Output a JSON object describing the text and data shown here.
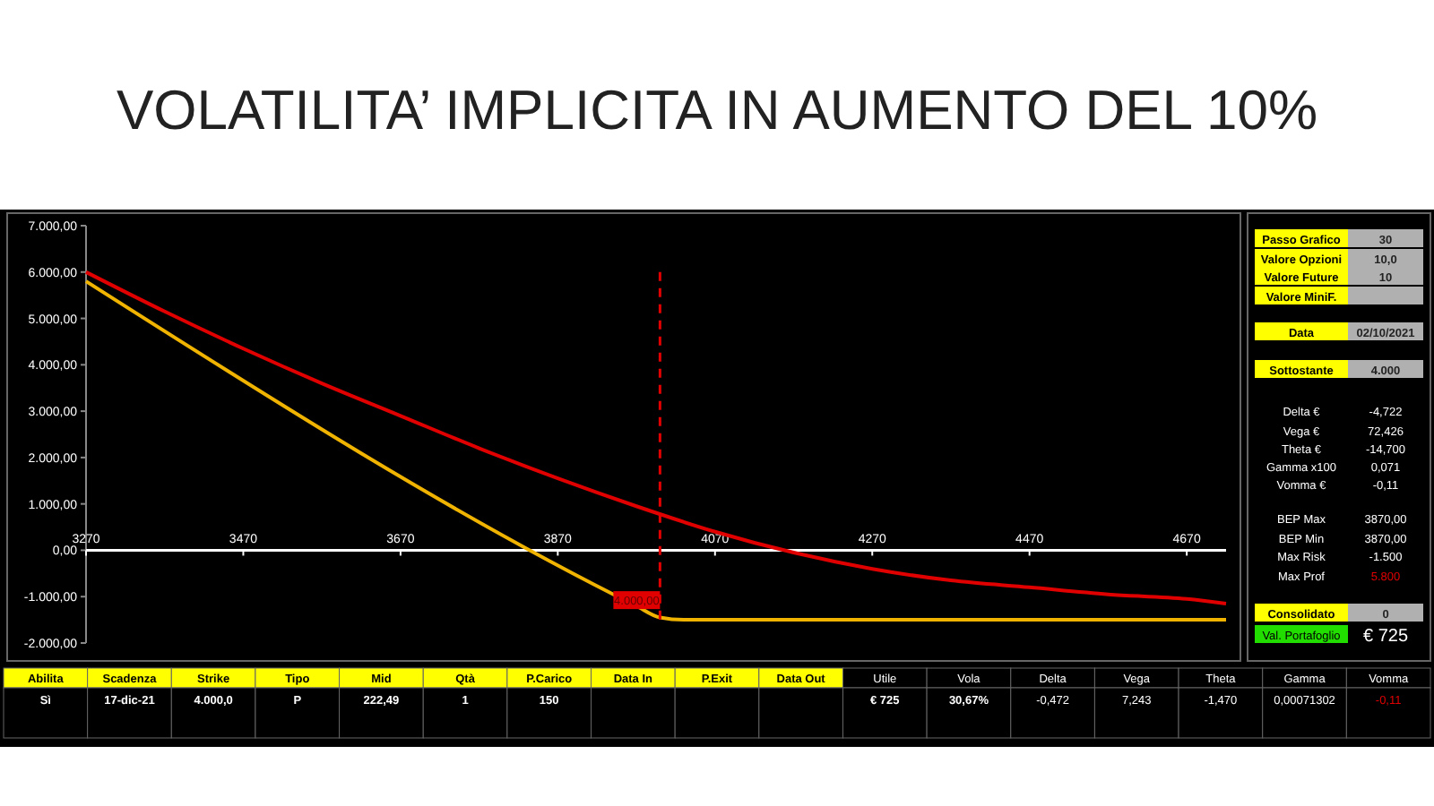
{
  "chart_data": [
    {
      "type": "line",
      "title": "VOLATILITA’ IMPLICITA IN AUMENTO DEL 10%",
      "grid": false,
      "marker": "none",
      "line_style": "solid",
      "xlim": [
        3270,
        4720
      ],
      "xticks": [
        3270,
        3470,
        3670,
        3870,
        4070,
        4270,
        4470,
        4670
      ],
      "ylim": [
        -2000,
        7000
      ],
      "yticks": [
        {
          "value": -2000,
          "label": "-2.000,00"
        },
        {
          "value": -1000,
          "label": "-1.000,00"
        },
        {
          "value": 0,
          "label": "0,00"
        },
        {
          "value": 1000,
          "label": "1.000,00"
        },
        {
          "value": 2000,
          "label": "2.000,00"
        },
        {
          "value": 3000,
          "label": "3.000,00"
        },
        {
          "value": 4000,
          "label": "4.000,00"
        },
        {
          "value": 5000,
          "label": "5.000,00"
        },
        {
          "value": 6000,
          "label": "6.000,00"
        },
        {
          "value": 7000,
          "label": "7.000,00"
        }
      ],
      "series": [
        {
          "color": "#e00000",
          "x": [
            3270,
            3370,
            3470,
            3570,
            3670,
            3770,
            3870,
            3970,
            4070,
            4170,
            4270,
            4370,
            4470,
            4570,
            4670,
            4720
          ],
          "values": [
            6000,
            5150,
            4350,
            3600,
            2900,
            2200,
            1550,
            950,
            400,
            -50,
            -400,
            -650,
            -800,
            -950,
            -1050,
            -1150
          ]
        },
        {
          "color": "#f0b400",
          "x": [
            3270,
            3970,
            4000,
            4030,
            4720
          ],
          "values": [
            5800,
            -1200,
            -1450,
            -1500,
            -1500
          ]
        }
      ],
      "ref_lines": [
        {
          "axis": "x",
          "value": 4000,
          "label": "4.000,00",
          "color": "#e00000",
          "line_style": "dashed"
        }
      ]
    },
    {
      "type": "other",
      "annotations": [
        "Passo Grafico",
        "30",
        "Valore Opzioni",
        "10,0",
        "Valore Future",
        "10",
        "Valore MiniF.",
        null,
        "Data",
        "02/10/2021",
        "Sottostante",
        "4.000",
        "Delta €",
        "-4,722",
        "Vega €",
        "72,426",
        "Theta €",
        "-14,700",
        "Gamma x100",
        "0,071",
        "Vomma €",
        "-0,11",
        "BEP Max",
        "3870,00",
        "BEP Min",
        "3870,00",
        "Max Risk",
        "-1.500",
        "Max Prof",
        "5.800",
        "Consolidato",
        "0",
        "Val. Portafoglio",
        "€ 725"
      ]
    },
    {
      "type": "other",
      "annotations": [
        "Abilita",
        "Scadenza",
        "Strike",
        "Tipo",
        "Mid",
        "Qtà",
        "P.Carico",
        "Data In",
        "P.Exit",
        "Data Out",
        "Utile",
        "Vola",
        "Delta",
        "Vega",
        "Theta",
        "Gamma",
        "Vomma",
        "Sì",
        "17-dic-21",
        "4.000,0",
        "P",
        "222,49",
        "1",
        "150",
        null,
        null,
        null,
        "€ 725",
        "30,67%",
        "-0,472",
        "7,243",
        "-1,470",
        "0,00071302",
        "-0,11"
      ]
    }
  ]
}
